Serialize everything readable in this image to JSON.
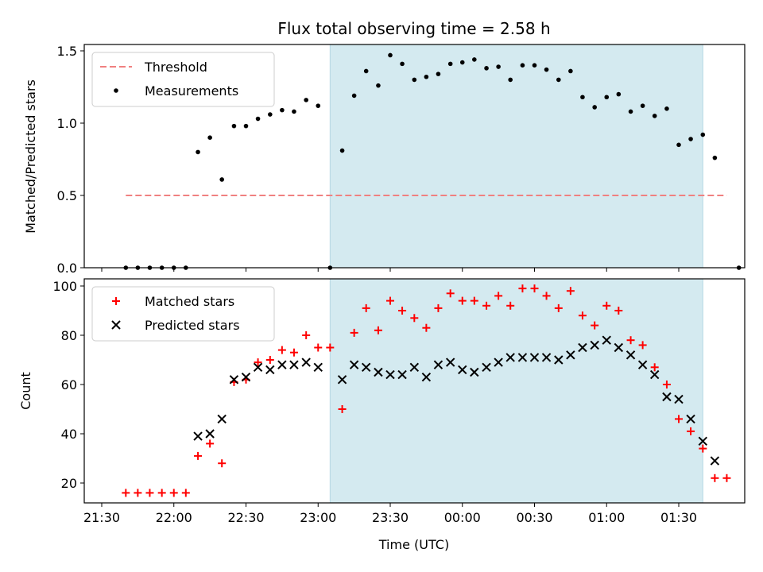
{
  "chart_data": {
    "title": "Flux total observing time = 2.58 h",
    "xlabel": "Time (UTC)",
    "x_ticks": [
      "21:30",
      "22:00",
      "22:30",
      "23:00",
      "23:30",
      "00:00",
      "00:30",
      "01:00",
      "01:30"
    ],
    "shaded_span_hours": [
      23.083,
      1.667
    ],
    "shade_color": "#d4eaf0",
    "panels": [
      {
        "type": "scatter",
        "ylabel": "Matched/Predicted stars",
        "ylim": [
          0,
          1.55
        ],
        "yticks": [
          "0.0",
          "0.5",
          "1.0",
          "1.5"
        ],
        "legend_position": "top-left",
        "threshold": {
          "name": "Threshold",
          "value": 0.5,
          "x_range_hours": [
            21.667,
            1.833
          ],
          "color": "#f08080"
        },
        "series": [
          {
            "name": "Measurements",
            "color": "#000000",
            "marker": "dot",
            "points": [
              [
                21.667,
                0.0
              ],
              [
                21.75,
                0.0
              ],
              [
                21.833,
                0.0
              ],
              [
                21.917,
                0.0
              ],
              [
                22.0,
                0.0
              ],
              [
                22.083,
                0.0
              ],
              [
                22.167,
                0.8
              ],
              [
                22.25,
                0.9
              ],
              [
                22.333,
                0.61
              ],
              [
                22.417,
                0.98
              ],
              [
                22.5,
                0.98
              ],
              [
                22.583,
                1.03
              ],
              [
                22.667,
                1.06
              ],
              [
                22.75,
                1.09
              ],
              [
                22.833,
                1.08
              ],
              [
                22.917,
                1.16
              ],
              [
                23.0,
                1.12
              ],
              [
                23.083,
                0.0
              ],
              [
                23.167,
                0.81
              ],
              [
                23.25,
                1.19
              ],
              [
                23.333,
                1.36
              ],
              [
                23.417,
                1.26
              ],
              [
                23.5,
                1.47
              ],
              [
                23.583,
                1.41
              ],
              [
                23.667,
                1.3
              ],
              [
                23.75,
                1.32
              ],
              [
                23.833,
                1.34
              ],
              [
                23.917,
                1.41
              ],
              [
                24.0,
                1.42
              ],
              [
                24.083,
                1.44
              ],
              [
                24.167,
                1.38
              ],
              [
                24.25,
                1.39
              ],
              [
                24.333,
                1.3
              ],
              [
                24.417,
                1.4
              ],
              [
                24.5,
                1.4
              ],
              [
                24.583,
                1.37
              ],
              [
                24.667,
                1.3
              ],
              [
                24.75,
                1.36
              ],
              [
                24.833,
                1.18
              ],
              [
                24.917,
                1.11
              ],
              [
                25.0,
                1.18
              ],
              [
                25.083,
                1.2
              ],
              [
                25.167,
                1.08
              ],
              [
                25.25,
                1.12
              ],
              [
                25.333,
                1.05
              ],
              [
                25.417,
                1.1
              ],
              [
                25.5,
                0.85
              ],
              [
                25.583,
                0.89
              ],
              [
                25.667,
                0.92
              ],
              [
                25.75,
                0.76
              ],
              [
                25.917,
                0.0
              ]
            ]
          }
        ]
      },
      {
        "type": "scatter",
        "ylabel": "Count",
        "ylim": [
          11.5,
          102
        ],
        "yticks": [
          "20",
          "40",
          "60",
          "80",
          "100"
        ],
        "legend_position": "top-left",
        "series": [
          {
            "name": "Matched stars",
            "color": "#ff0000",
            "marker": "plus",
            "points": [
              [
                21.667,
                16
              ],
              [
                21.75,
                16
              ],
              [
                21.833,
                16
              ],
              [
                21.917,
                16
              ],
              [
                22.0,
                16
              ],
              [
                22.083,
                16
              ],
              [
                22.167,
                31
              ],
              [
                22.25,
                36
              ],
              [
                22.333,
                28
              ],
              [
                22.417,
                61
              ],
              [
                22.5,
                62
              ],
              [
                22.583,
                69
              ],
              [
                22.667,
                70
              ],
              [
                22.75,
                74
              ],
              [
                22.833,
                73
              ],
              [
                22.917,
                80
              ],
              [
                23.0,
                75
              ],
              [
                23.083,
                75
              ],
              [
                23.167,
                50
              ],
              [
                23.25,
                81
              ],
              [
                23.333,
                91
              ],
              [
                23.417,
                82
              ],
              [
                23.5,
                94
              ],
              [
                23.583,
                90
              ],
              [
                23.667,
                87
              ],
              [
                23.75,
                83
              ],
              [
                23.833,
                91
              ],
              [
                23.917,
                97
              ],
              [
                24.0,
                94
              ],
              [
                24.083,
                94
              ],
              [
                24.167,
                92
              ],
              [
                24.25,
                96
              ],
              [
                24.333,
                92
              ],
              [
                24.417,
                99
              ],
              [
                24.5,
                99
              ],
              [
                24.583,
                96
              ],
              [
                24.667,
                91
              ],
              [
                24.75,
                98
              ],
              [
                24.833,
                88
              ],
              [
                24.917,
                84
              ],
              [
                25.0,
                92
              ],
              [
                25.083,
                90
              ],
              [
                25.167,
                78
              ],
              [
                25.25,
                76
              ],
              [
                25.333,
                67
              ],
              [
                25.417,
                60
              ],
              [
                25.5,
                46
              ],
              [
                25.583,
                41
              ],
              [
                25.667,
                34
              ],
              [
                25.75,
                22
              ],
              [
                25.833,
                22
              ]
            ]
          },
          {
            "name": "Predicted stars",
            "color": "#000000",
            "marker": "cross",
            "points": [
              [
                22.167,
                39
              ],
              [
                22.25,
                40
              ],
              [
                22.333,
                46
              ],
              [
                22.417,
                62
              ],
              [
                22.5,
                63
              ],
              [
                22.583,
                67
              ],
              [
                22.667,
                66
              ],
              [
                22.75,
                68
              ],
              [
                22.833,
                68
              ],
              [
                22.917,
                69
              ],
              [
                23.0,
                67
              ],
              [
                23.167,
                62
              ],
              [
                23.25,
                68
              ],
              [
                23.333,
                67
              ],
              [
                23.417,
                65
              ],
              [
                23.5,
                64
              ],
              [
                23.583,
                64
              ],
              [
                23.667,
                67
              ],
              [
                23.75,
                63
              ],
              [
                23.833,
                68
              ],
              [
                23.917,
                69
              ],
              [
                24.0,
                66
              ],
              [
                24.083,
                65
              ],
              [
                24.167,
                67
              ],
              [
                24.25,
                69
              ],
              [
                24.333,
                71
              ],
              [
                24.417,
                71
              ],
              [
                24.5,
                71
              ],
              [
                24.583,
                71
              ],
              [
                24.667,
                70
              ],
              [
                24.75,
                72
              ],
              [
                24.833,
                75
              ],
              [
                24.917,
                76
              ],
              [
                25.0,
                78
              ],
              [
                25.083,
                75
              ],
              [
                25.167,
                72
              ],
              [
                25.25,
                68
              ],
              [
                25.333,
                64
              ],
              [
                25.417,
                55
              ],
              [
                25.5,
                54
              ],
              [
                25.583,
                46
              ],
              [
                25.667,
                37
              ],
              [
                25.75,
                29
              ]
            ]
          }
        ]
      }
    ]
  }
}
